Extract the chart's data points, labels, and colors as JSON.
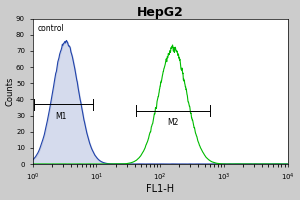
{
  "title": "HepG2",
  "title_fontsize": 9,
  "xlabel": "FL1-H",
  "ylabel": "Counts",
  "xlabel_fontsize": 7,
  "ylabel_fontsize": 6,
  "xlim_log": [
    0,
    4
  ],
  "ylim": [
    0,
    90
  ],
  "yticks": [
    0,
    10,
    20,
    30,
    40,
    50,
    60,
    70,
    80,
    90
  ],
  "ytick_fontsize": 5,
  "xtick_fontsize": 5,
  "control_label": "control",
  "control_color": "#2244aa",
  "control_fill_color": "#8899cc",
  "sample_color": "#00bb00",
  "figure_bg_color": "#cccccc",
  "plot_bg_color": "#ffffff",
  "m1_label": "M1",
  "m2_label": "M2",
  "ctrl_peak_log": 0.52,
  "ctrl_peak_height": 76,
  "ctrl_sigma": 0.2,
  "samp_peak_log": 2.2,
  "samp_peak_height": 72,
  "samp_sigma": 0.22,
  "m1_x1_log": 0.02,
  "m1_x2_log": 0.95,
  "m1_y": 37,
  "m2_x1_log": 1.62,
  "m2_x2_log": 2.78,
  "m2_y": 33,
  "bracket_tick_height": 3.5
}
